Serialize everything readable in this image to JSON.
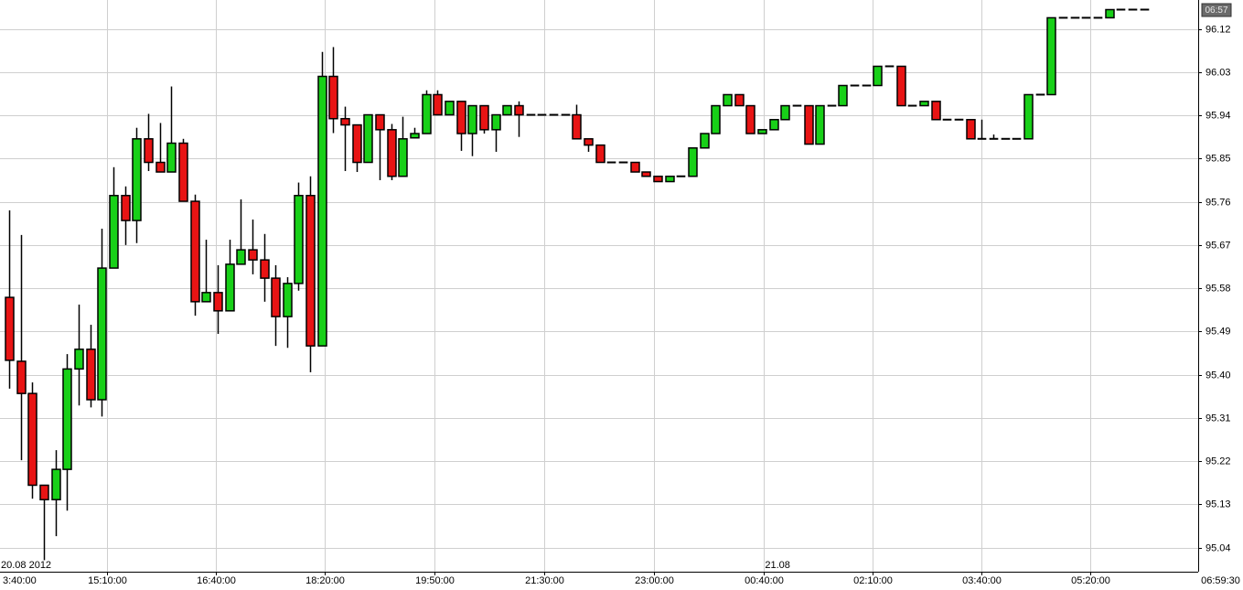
{
  "chart_data": {
    "type": "candlestick",
    "clock": "06:57",
    "up_color": "#18d018",
    "down_color": "#e81414",
    "grid": true,
    "xlim": [
      -0.79,
      102.69
    ],
    "ylim": [
      94.99,
      96.18
    ],
    "yticks": [
      95.04,
      95.13,
      95.22,
      95.31,
      {
        "value": 95.4,
        "label": "95.40"
      },
      95.49,
      95.58,
      95.67,
      95.76,
      95.85,
      95.94,
      96.03,
      96.12
    ],
    "xticks": [
      {
        "value": -0.95,
        "label": "3:40:00"
      },
      {
        "value": 8.45,
        "label": "15:10:00"
      },
      {
        "value": 17.85,
        "label": "16:40:00"
      },
      {
        "value": 27.25,
        "label": "18:20:00"
      },
      {
        "value": 36.73,
        "label": "19:50:00"
      },
      {
        "value": 46.2,
        "label": "21:30:00"
      },
      {
        "value": 55.7,
        "label": "23:00:00"
      },
      {
        "value": 65.2,
        "label": "00:40:00"
      },
      {
        "value": 74.6,
        "label": "02:10:00"
      },
      {
        "value": 84.0,
        "label": "03:40:00"
      },
      {
        "value": 93.4,
        "label": "05:20:00"
      },
      {
        "value": 104.6,
        "label": "06:59:30"
      }
    ],
    "date_labels": [
      {
        "value": -0.79,
        "label": "20.08 2012"
      },
      {
        "value": 65.2,
        "label": "21.08"
      }
    ],
    "open": [
      95.561,
      95.428,
      95.361,
      95.17,
      95.14,
      95.203,
      95.412,
      95.453,
      95.348,
      95.622,
      95.773,
      95.721,
      95.891,
      95.842,
      95.822,
      95.882,
      95.761,
      95.552,
      95.571,
      95.533,
      95.63,
      95.66,
      95.639,
      95.601,
      95.521,
      95.59,
      95.773,
      95.46,
      96.021,
      95.933,
      95.92,
      95.842,
      95.941,
      95.91,
      95.813,
      95.893,
      95.902,
      95.983,
      95.941,
      95.969,
      95.902,
      95.96,
      95.91,
      95.941,
      95.96,
      95.941,
      95.941,
      95.941,
      95.941,
      95.941,
      95.891,
      95.878,
      95.842,
      95.842,
      95.842,
      95.822,
      95.813,
      95.802,
      95.813,
      95.813,
      95.872,
      95.902,
      95.96,
      95.983,
      95.96,
      95.902,
      95.91,
      95.931,
      95.96,
      95.96,
      95.88,
      95.96,
      95.96,
      96.002,
      96.002,
      96.002,
      96.042,
      96.042,
      95.96,
      95.96,
      95.969,
      95.931,
      95.931,
      95.931,
      95.891,
      95.891,
      95.891,
      95.891,
      95.891,
      95.983,
      95.983,
      96.143,
      96.143,
      96.143,
      96.143,
      96.143,
      96.16,
      96.16,
      96.16
    ],
    "high": [
      95.742,
      95.691,
      95.384,
      95.17,
      95.243,
      95.443,
      95.546,
      95.504,
      95.704,
      95.832,
      95.792,
      95.914,
      95.943,
      95.924,
      96.0,
      95.891,
      95.775,
      95.681,
      95.628,
      95.681,
      95.765,
      95.723,
      95.693,
      95.628,
      95.603,
      95.8,
      95.813,
      96.072,
      96.082,
      95.958,
      95.92,
      95.941,
      95.941,
      95.922,
      95.937,
      95.914,
      95.992,
      95.992,
      95.969,
      95.969,
      95.96,
      95.96,
      95.941,
      95.96,
      95.969,
      95.941,
      95.941,
      95.941,
      95.941,
      95.962,
      95.891,
      95.878,
      95.842,
      95.842,
      95.842,
      95.822,
      95.813,
      95.813,
      95.813,
      95.872,
      95.902,
      95.96,
      95.983,
      95.983,
      95.96,
      95.91,
      95.931,
      95.96,
      95.96,
      95.96,
      95.96,
      95.96,
      96.002,
      96.002,
      96.002,
      96.042,
      96.042,
      96.042,
      95.96,
      95.969,
      95.969,
      95.931,
      95.931,
      95.931,
      95.931,
      95.9,
      95.891,
      95.891,
      95.983,
      95.983,
      96.143,
      96.143,
      96.143,
      96.143,
      96.143,
      96.16,
      96.16,
      96.16,
      96.16
    ],
    "low": [
      95.371,
      95.222,
      95.142,
      95.014,
      95.064,
      95.117,
      95.336,
      95.332,
      95.313,
      95.622,
      95.67,
      95.674,
      95.824,
      95.822,
      95.822,
      95.761,
      95.523,
      95.552,
      95.485,
      95.533,
      95.63,
      95.609,
      95.552,
      95.46,
      95.456,
      95.575,
      95.405,
      95.46,
      95.903,
      95.824,
      95.822,
      95.842,
      95.805,
      95.805,
      95.813,
      95.893,
      95.902,
      95.941,
      95.941,
      95.866,
      95.855,
      95.902,
      95.864,
      95.941,
      95.895,
      95.941,
      95.941,
      95.941,
      95.941,
      95.891,
      95.864,
      95.842,
      95.842,
      95.842,
      95.822,
      95.813,
      95.802,
      95.802,
      95.813,
      95.813,
      95.872,
      95.902,
      95.96,
      95.96,
      95.902,
      95.902,
      95.91,
      95.931,
      95.96,
      95.88,
      95.88,
      95.96,
      95.96,
      96.002,
      96.002,
      96.002,
      96.042,
      95.96,
      95.96,
      95.96,
      95.931,
      95.931,
      95.931,
      95.891,
      95.891,
      95.891,
      95.891,
      95.891,
      95.891,
      95.983,
      95.983,
      96.143,
      96.143,
      96.143,
      96.143,
      96.143,
      96.16,
      96.16,
      96.16
    ],
    "close": [
      95.43,
      95.361,
      95.17,
      95.14,
      95.203,
      95.412,
      95.453,
      95.348,
      95.622,
      95.773,
      95.721,
      95.891,
      95.842,
      95.822,
      95.882,
      95.761,
      95.552,
      95.571,
      95.533,
      95.63,
      95.66,
      95.639,
      95.601,
      95.521,
      95.59,
      95.773,
      95.46,
      96.021,
      95.933,
      95.92,
      95.842,
      95.941,
      95.91,
      95.813,
      95.891,
      95.902,
      95.983,
      95.941,
      95.969,
      95.902,
      95.96,
      95.91,
      95.941,
      95.96,
      95.941,
      95.941,
      95.941,
      95.941,
      95.941,
      95.891,
      95.878,
      95.842,
      95.842,
      95.842,
      95.822,
      95.813,
      95.802,
      95.813,
      95.813,
      95.872,
      95.902,
      95.96,
      95.983,
      95.96,
      95.902,
      95.91,
      95.931,
      95.96,
      95.96,
      95.88,
      95.96,
      95.96,
      96.002,
      96.002,
      96.002,
      96.042,
      96.042,
      95.96,
      95.96,
      95.969,
      95.931,
      95.931,
      95.931,
      95.891,
      95.891,
      95.891,
      95.891,
      95.891,
      95.983,
      95.983,
      96.143,
      96.143,
      96.143,
      96.143,
      96.143,
      96.16,
      96.16,
      96.16,
      96.16
    ]
  }
}
